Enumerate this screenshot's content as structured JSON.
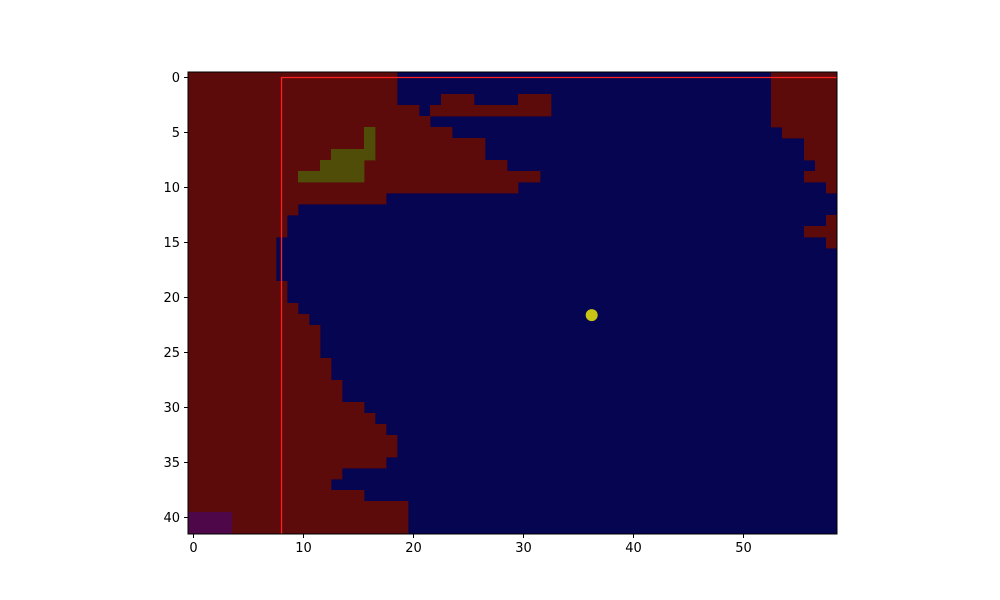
{
  "chart_data": {
    "type": "heatmap",
    "title": "",
    "xlabel": "",
    "ylabel": "",
    "grid": {
      "cols": 59,
      "rows": 42
    },
    "xlim": [
      -0.5,
      58.5
    ],
    "ylim": [
      41.5,
      -0.5
    ],
    "x_ticks": [
      0,
      10,
      20,
      30,
      40,
      50
    ],
    "y_ticks": [
      0,
      5,
      10,
      15,
      20,
      25,
      30,
      35,
      40
    ],
    "colors": {
      "background": "#050551",
      "region_red": "#5c0a0a",
      "region_olive": "#4f4d08",
      "region_purple": "#4e0748",
      "rectangle_outline": "#ff2020",
      "point": "#c8c416"
    },
    "red_row_spans": [
      [
        [
          0,
          18
        ],
        [
          53,
          58
        ]
      ],
      [
        [
          0,
          18
        ],
        [
          53,
          58
        ]
      ],
      [
        [
          0,
          18
        ],
        [
          23,
          25
        ],
        [
          30,
          32
        ],
        [
          53,
          58
        ]
      ],
      [
        [
          0,
          20
        ],
        [
          22,
          29
        ],
        [
          30,
          32
        ],
        [
          53,
          58
        ]
      ],
      [
        [
          0,
          21
        ],
        [
          53,
          58
        ]
      ],
      [
        [
          0,
          23
        ],
        [
          54,
          58
        ]
      ],
      [
        [
          0,
          26
        ],
        [
          56,
          58
        ]
      ],
      [
        [
          0,
          26
        ],
        [
          56,
          58
        ]
      ],
      [
        [
          0,
          28
        ],
        [
          57,
          58
        ]
      ],
      [
        [
          0,
          31
        ],
        [
          56,
          58
        ]
      ],
      [
        [
          0,
          29
        ],
        [
          58,
          58
        ]
      ],
      [
        [
          0,
          17
        ]
      ],
      [
        [
          0,
          9
        ]
      ],
      [
        [
          0,
          8
        ],
        [
          58,
          58
        ]
      ],
      [
        [
          0,
          8
        ],
        [
          56,
          58
        ]
      ],
      [
        [
          0,
          7
        ],
        [
          58,
          58
        ]
      ],
      [
        [
          0,
          7
        ]
      ],
      [
        [
          0,
          7
        ]
      ],
      [
        [
          0,
          7
        ]
      ],
      [
        [
          0,
          8
        ]
      ],
      [
        [
          0,
          8
        ]
      ],
      [
        [
          0,
          9
        ]
      ],
      [
        [
          0,
          10
        ]
      ],
      [
        [
          0,
          11
        ]
      ],
      [
        [
          0,
          11
        ]
      ],
      [
        [
          0,
          11
        ]
      ],
      [
        [
          0,
          12
        ]
      ],
      [
        [
          0,
          12
        ]
      ],
      [
        [
          0,
          13
        ]
      ],
      [
        [
          0,
          13
        ]
      ],
      [
        [
          0,
          15
        ]
      ],
      [
        [
          0,
          16
        ]
      ],
      [
        [
          0,
          17
        ]
      ],
      [
        [
          0,
          18
        ]
      ],
      [
        [
          0,
          18
        ]
      ],
      [
        [
          0,
          17
        ]
      ],
      [
        [
          0,
          13
        ]
      ],
      [
        [
          0,
          12
        ]
      ],
      [
        [
          0,
          15
        ]
      ],
      [
        [
          0,
          19
        ]
      ],
      [
        [
          0,
          19
        ]
      ],
      [
        [
          0,
          19
        ]
      ]
    ],
    "olive_cells": [
      [
        5,
        16
      ],
      [
        6,
        16
      ],
      [
        7,
        13
      ],
      [
        7,
        14
      ],
      [
        7,
        15
      ],
      [
        7,
        16
      ],
      [
        8,
        12
      ],
      [
        8,
        13
      ],
      [
        8,
        14
      ],
      [
        8,
        15
      ],
      [
        9,
        10
      ],
      [
        9,
        11
      ],
      [
        9,
        12
      ],
      [
        9,
        13
      ],
      [
        9,
        14
      ],
      [
        9,
        15
      ]
    ],
    "purple_block": {
      "x": [
        0,
        3
      ],
      "y": [
        40,
        41
      ]
    },
    "rectangle": {
      "x0": 8,
      "y0": 0,
      "x1": 58.5,
      "y1": 41.5
    },
    "point": {
      "x": 36.2,
      "y": 21.6
    }
  }
}
